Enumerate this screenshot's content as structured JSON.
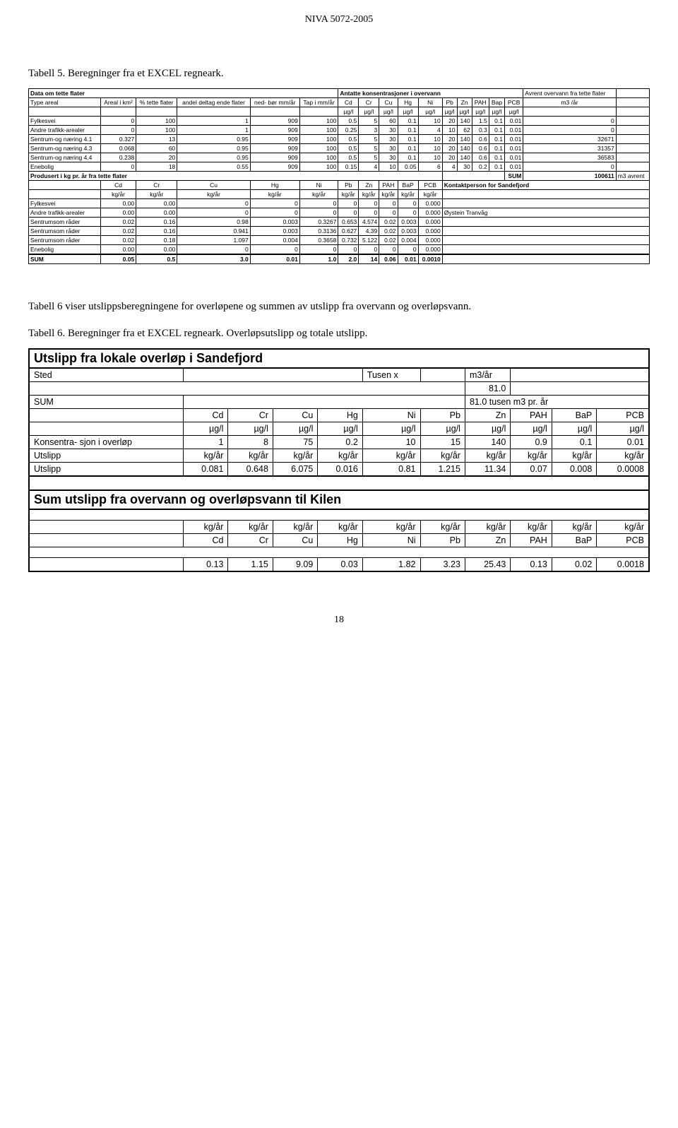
{
  "doc_header": "NIVA 5072-2005",
  "caption1": "Tabell 5. Beregninger fra et EXCEL regneark.",
  "table1": {
    "title_left": "Data om tette flater",
    "title_right": "Antatte konsentrasjoner i overvann",
    "avrent_label": "Avrent overvann fra tette flater",
    "header": {
      "c0": "Type areal",
      "c1": "Areal i km²",
      "c2": "% tette flater",
      "c3": "andel deltag ende flater",
      "c4": "ned- bør mm/år",
      "c5": "Tap i mm/år",
      "c6": "Cd",
      "c7": "Cr",
      "c8": "Cu",
      "c9": "Hg",
      "c10": "Ni",
      "c11": "Pb",
      "c12": "Zn",
      "c13": "PAH",
      "c14": "Bap",
      "c15": "PCB",
      "c16": "m3 /år"
    },
    "unit": "µg/l",
    "rows": [
      {
        "label": "Fylkesvei",
        "v": [
          "0",
          "100",
          "1",
          "909",
          "100",
          "0.5",
          "5",
          "60",
          "0.1",
          "10",
          "20",
          "140",
          "1.5",
          "0.1",
          "0.01",
          "0"
        ]
      },
      {
        "label": "Andre trafikk-arealer",
        "v": [
          "0",
          "100",
          "1",
          "909",
          "100",
          "0.25",
          "3",
          "30",
          "0.1",
          "4",
          "10",
          "62",
          "0.3",
          "0.1",
          "0.01",
          "0"
        ]
      },
      {
        "label": "Sentrum-og næring 4.1",
        "v": [
          "0.327",
          "13",
          "0.95",
          "909",
          "100",
          "0.5",
          "5",
          "30",
          "0.1",
          "10",
          "20",
          "140",
          "0.6",
          "0.1",
          "0.01",
          "32671"
        ]
      },
      {
        "label": "Sentrum-og næring 4.3",
        "v": [
          "0.068",
          "60",
          "0.95",
          "909",
          "100",
          "0.5",
          "5",
          "30",
          "0.1",
          "10",
          "20",
          "140",
          "0.6",
          "0.1",
          "0.01",
          "31357"
        ]
      },
      {
        "label": "Sentrum-og næring 4.4",
        "v": [
          "0.238",
          "20",
          "0.95",
          "909",
          "100",
          "0.5",
          "5",
          "30",
          "0.1",
          "10",
          "20",
          "140",
          "0.6",
          "0.1",
          "0.01",
          "36583"
        ]
      },
      {
        "label": "Enebolig",
        "v": [
          "0",
          "18",
          "0.55",
          "909",
          "100",
          "0.15",
          "4",
          "10",
          "0.05",
          "6",
          "4",
          "30",
          "0.2",
          "0.1",
          "0.01",
          "0"
        ]
      }
    ],
    "prod_title": "Produsert i kg pr. år fra tette flater",
    "sum_label": "SUM",
    "sum_value": "100611",
    "sum_unit": "m3 avrent",
    "header2": {
      "c0": "",
      "c1": "Cd",
      "c2": "Cr",
      "c3": "Cu",
      "c4": "Hg",
      "c5": "Ni",
      "c6": "Pb",
      "c7": "Zn",
      "c8": "PAH",
      "c9": "BaP",
      "c10": "PCB",
      "kontakt": "Kontaktperson for Sandefjord"
    },
    "unit2": "kg/år",
    "rows2": [
      {
        "label": "Fylkesvei",
        "v": [
          "0.00",
          "0.00",
          "0",
          "0",
          "0",
          "0",
          "0",
          "0",
          "0",
          "0.000"
        ],
        "note": ""
      },
      {
        "label": "Andre trafikk-arealer",
        "v": [
          "0.00",
          "0.00",
          "0",
          "0",
          "0",
          "0",
          "0",
          "0",
          "0",
          "0.000"
        ],
        "note": "Øystein Tranvåg"
      },
      {
        "label": "Sentrumsom råder",
        "v": [
          "0.02",
          "0.16",
          "0.98",
          "0.003",
          "0.3267",
          "0.653",
          "4.574",
          "0.02",
          "0.003",
          "0.000"
        ],
        "note": ""
      },
      {
        "label": "Sentrumsom råder",
        "v": [
          "0.02",
          "0.16",
          "0.941",
          "0.003",
          "0.3136",
          "0.627",
          "4.39",
          "0.02",
          "0.003",
          "0.000"
        ],
        "note": ""
      },
      {
        "label": "Sentrumsom råder",
        "v": [
          "0.02",
          "0.18",
          "1.097",
          "0.004",
          "0.3658",
          "0.732",
          "5.122",
          "0.02",
          "0.004",
          "0.000"
        ],
        "note": ""
      },
      {
        "label": "Enebolig",
        "v": [
          "0.00",
          "0.00",
          "0",
          "0",
          "0",
          "0",
          "0",
          "0",
          "0",
          "0.000"
        ],
        "note": ""
      }
    ],
    "sum_row": {
      "label": "SUM",
      "v": [
        "0.05",
        "0.5",
        "3.0",
        "0.01",
        "1.0",
        "2.0",
        "14",
        "0.06",
        "0.01",
        "0.0010"
      ]
    }
  },
  "para": "Tabell 6 viser utslippsberegningene for overløpene og summen av utslipp fra overvann og overløpsvann.",
  "caption2": "Tabell 6. Beregninger fra et EXCEL regneark. Overløpsutslipp og totale utslipp.",
  "table2": {
    "title": "Utslipp fra lokale overløp i Sandefjord",
    "sted": "Sted",
    "tusen": "Tusen x",
    "m3ar": "m3/år",
    "val81": "81.0",
    "sum": "SUM",
    "sumtext": "81.0 tusen m3 pr. år",
    "elems": [
      "Cd",
      "Cr",
      "Cu",
      "Hg",
      "Ni",
      "Pb",
      "Zn",
      "PAH",
      "BaP",
      "PCB"
    ],
    "unit": "µg/l",
    "kons": "Konsentra- sjon i overløp",
    "kons_vals": [
      "1",
      "8",
      "75",
      "0.2",
      "10",
      "15",
      "140",
      "0.9",
      "0.1",
      "0.01"
    ],
    "utslipp": "Utslipp",
    "kgaar": "kg/år",
    "utslipp_vals": [
      "0.081",
      "0.648",
      "6.075",
      "0.016",
      "0.81",
      "1.215",
      "11.34",
      "0.07",
      "0.008",
      "0.0008"
    ],
    "section2": "Sum utslipp fra overvann og overløpsvann til Kilen",
    "s2_vals": [
      "0.13",
      "1.15",
      "9.09",
      "0.03",
      "1.82",
      "3.23",
      "25.43",
      "0.13",
      "0.02",
      "0.0018"
    ]
  },
  "pagenum": "18"
}
